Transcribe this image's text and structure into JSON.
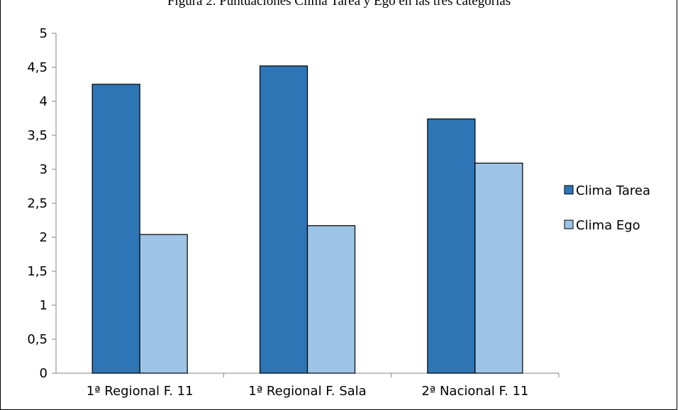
{
  "chart_data": {
    "type": "bar",
    "title": "Figura 2. Puntuaciones Clima Tarea y Ego en las tres categorías",
    "categories": [
      "1ª Regional F. 11",
      "1ª Regional F. Sala",
      "2ª Nacional F. 11"
    ],
    "series": [
      {
        "name": "Clima Tarea",
        "values": [
          4.25,
          4.52,
          3.74
        ],
        "color": "#2E75B6"
      },
      {
        "name": "Clima Ego",
        "values": [
          2.04,
          2.17,
          3.09
        ],
        "color": "#9DC3E6"
      }
    ],
    "yticks": [
      "0",
      "0,5",
      "1",
      "1,5",
      "2",
      "2,5",
      "3",
      "3,5",
      "4",
      "4,5",
      "5"
    ],
    "ylim": [
      0,
      5
    ],
    "xlabel": "",
    "ylabel": "",
    "grid": false,
    "legend_position": "right"
  }
}
